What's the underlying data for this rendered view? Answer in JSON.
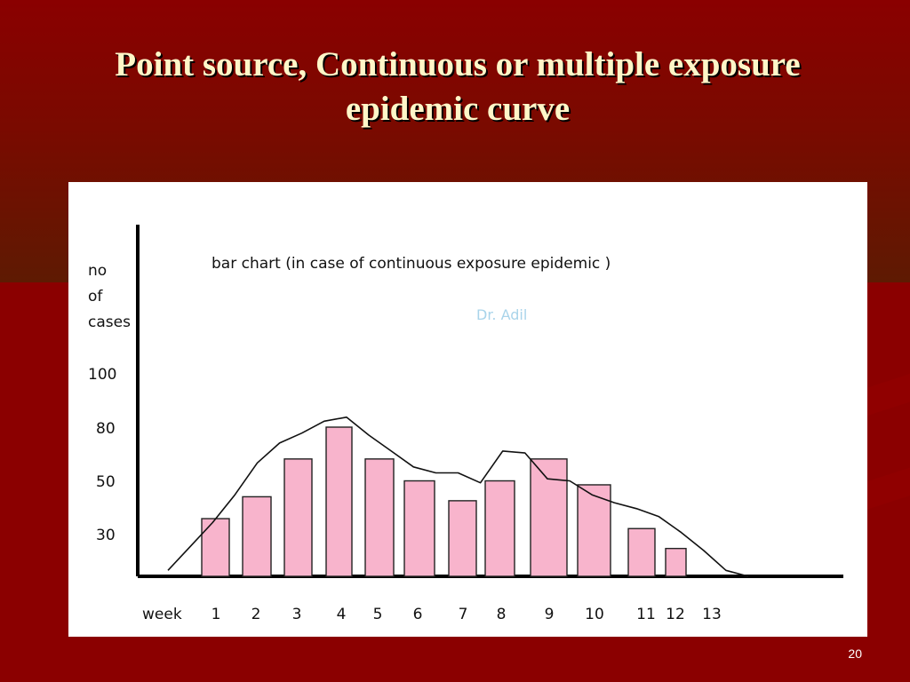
{
  "slide": {
    "title_line1": "Point source, Continuous or multiple exposure",
    "title_line2": "epidemic curve",
    "page_number": "20"
  },
  "chart_data": {
    "type": "bar",
    "title": "bar chart (in case of continuous exposure epidemic )",
    "watermark": "Dr. Adil",
    "ylabel_lines": [
      "no",
      "of",
      "cases"
    ],
    "xlabel": "week",
    "y_ticks": [
      "100",
      "80",
      "50",
      "30"
    ],
    "categories": [
      "1",
      "2",
      "3",
      "4",
      "5",
      "6",
      "7",
      "8",
      "9",
      "10",
      "11",
      "12",
      "13"
    ],
    "values": [
      29,
      40,
      59,
      75,
      59,
      48,
      38,
      48,
      59,
      46,
      24,
      14,
      null
    ],
    "curve_values": [
      3,
      15,
      27,
      41,
      57,
      67,
      72,
      78,
      80,
      71,
      63,
      55,
      52,
      52,
      47,
      63,
      62,
      49,
      48,
      41,
      37,
      34,
      30,
      22,
      13,
      3,
      0
    ],
    "colors": {
      "bar_fill": "#f8b4cc",
      "bar_stroke": "#222222",
      "axis": "#000000",
      "curve": "#111111",
      "watermark": "#a9d4ea"
    }
  }
}
